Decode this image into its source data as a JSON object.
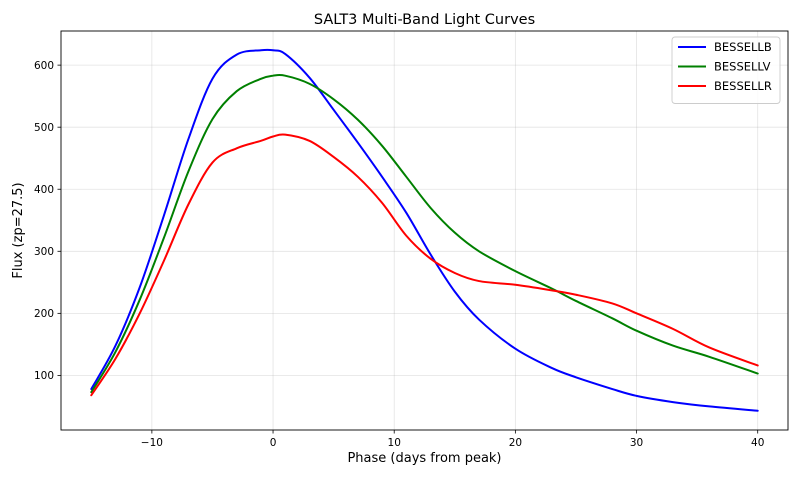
{
  "chart_data": {
    "type": "line",
    "title": "SALT3 Multi-Band Light Curves",
    "xlabel": "Phase (days from peak)",
    "ylabel": "Flux (zp=27.5)",
    "xlim": [
      -17.5,
      42.5
    ],
    "ylim": [
      12,
      655
    ],
    "xticks": [
      -10,
      0,
      10,
      20,
      30,
      40
    ],
    "xtick_labels": [
      "−10",
      "0",
      "10",
      "20",
      "30",
      "40"
    ],
    "yticks": [
      100,
      200,
      300,
      400,
      500,
      600
    ],
    "ytick_labels": [
      "100",
      "200",
      "300",
      "400",
      "500",
      "600"
    ],
    "grid": true,
    "legend_position": "top-right",
    "x": [
      -15,
      -13,
      -11,
      -9,
      -7,
      -5,
      -3,
      -1,
      0,
      1,
      3,
      5,
      7,
      9,
      11,
      13,
      15,
      17,
      20,
      23,
      25,
      28,
      30,
      33,
      36,
      40
    ],
    "series": [
      {
        "name": "BESSELLB",
        "color": "#0000ff",
        "values": [
          78,
          148,
          242,
          358,
          480,
          578,
          617,
          624,
          624,
          618,
          580,
          528,
          475,
          420,
          362,
          295,
          235,
          190,
          143,
          112,
          97,
          78,
          67,
          57,
          50,
          43
        ]
      },
      {
        "name": "BESSELLV",
        "color": "#008000",
        "values": [
          73,
          138,
          222,
          322,
          428,
          513,
          558,
          578,
          583,
          583,
          570,
          545,
          512,
          470,
          420,
          370,
          330,
          300,
          268,
          240,
          220,
          192,
          172,
          148,
          130,
          103
        ]
      },
      {
        "name": "BESSELLR",
        "color": "#ff0000",
        "values": [
          68,
          127,
          200,
          285,
          375,
          443,
          466,
          478,
          485,
          488,
          478,
          452,
          420,
          378,
          325,
          288,
          265,
          252,
          246,
          237,
          230,
          216,
          200,
          175,
          145,
          116
        ]
      }
    ]
  }
}
